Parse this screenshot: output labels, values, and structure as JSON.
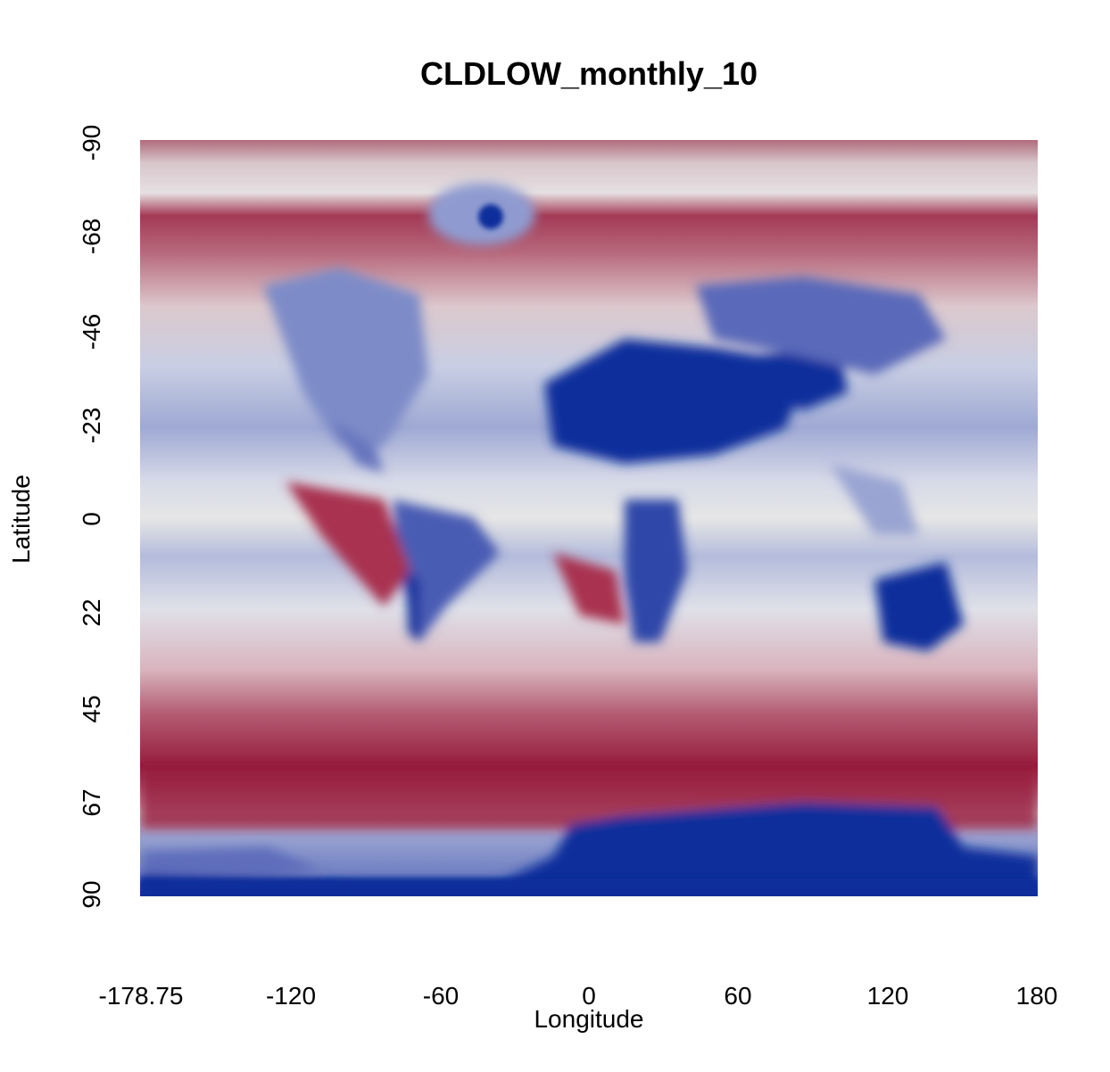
{
  "chart_data": {
    "type": "heatmap",
    "title": "CLDLOW_monthly_10",
    "xlabel": "Longitude",
    "ylabel": "Latitude",
    "xlim": [
      -178.75,
      180
    ],
    "ylim": [
      -90,
      90
    ],
    "y_axis_direction": "top-to-bottom (-90 at top, 90 at bottom)",
    "x_ticks": [
      -178.75,
      -120,
      -60,
      0,
      60,
      120,
      180
    ],
    "x_tick_labels": [
      "-178.75",
      "-120",
      "-60",
      "0",
      "60",
      "120",
      "180"
    ],
    "y_ticks": [
      -90,
      -68,
      -46,
      -23,
      0,
      22,
      45,
      67,
      90
    ],
    "y_tick_labels": [
      "-90",
      "-68",
      "-46",
      "-23",
      "0",
      "22",
      "45",
      "67",
      "90"
    ],
    "colormap": {
      "low": "#0b2f9b",
      "mid": "#e6e6e6",
      "high": "#8b0a2a"
    },
    "grid": false,
    "legend": "none"
  }
}
